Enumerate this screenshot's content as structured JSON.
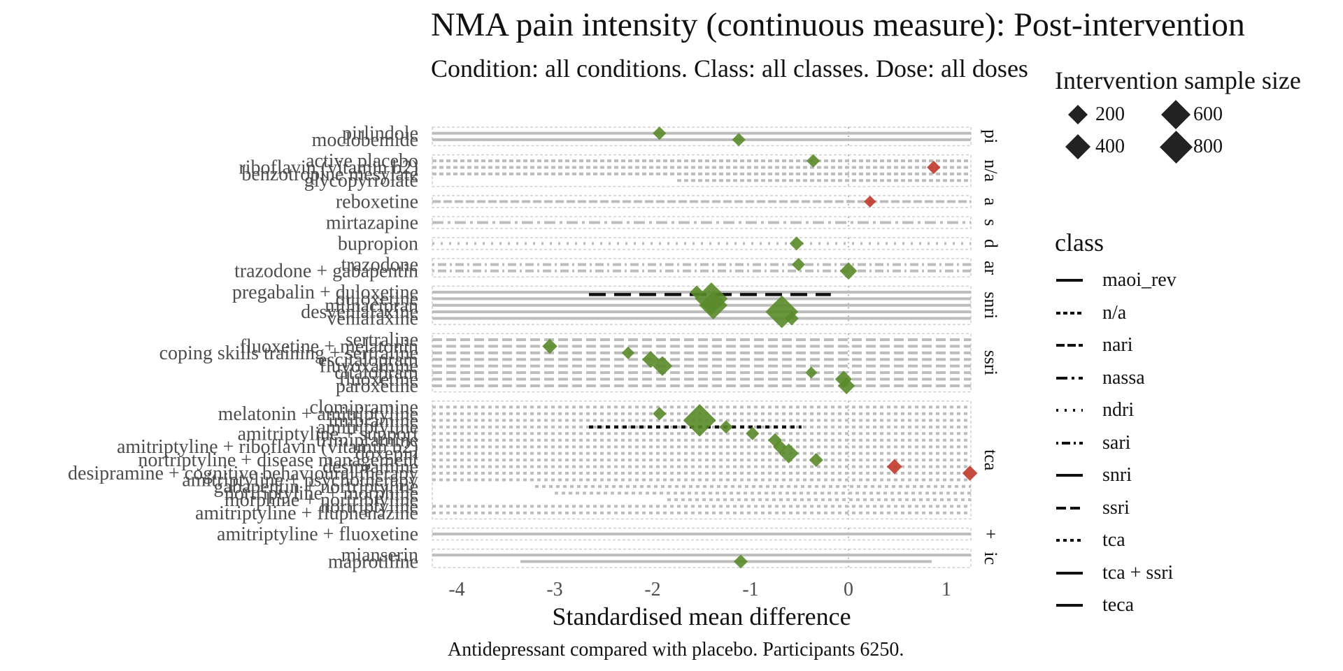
{
  "title": "NMA pain intensity (continuous measure): Post-intervention",
  "subtitle": "Condition: all conditions. Class: all classes. Dose: all doses",
  "caption": "Antidepressant compared with placebo. Participants 6250.",
  "size_legend": {
    "title": "Intervention sample size",
    "items": [
      {
        "label": "200",
        "size": 200
      },
      {
        "label": "600",
        "size": 600
      },
      {
        "label": "400",
        "size": 400
      },
      {
        "label": "800",
        "size": 800
      }
    ]
  },
  "class_legend": {
    "title": "class",
    "items": [
      {
        "label": "maoi_rev",
        "dash": "solid"
      },
      {
        "label": "n/a",
        "dash": "6,4"
      },
      {
        "label": "nari",
        "dash": "12,4"
      },
      {
        "label": "nassa",
        "dash": "16,6,4,6"
      },
      {
        "label": "ndri",
        "dash": "3,9"
      },
      {
        "label": "sari",
        "dash": "3,5,12,5"
      },
      {
        "label": "snri",
        "dash": "solid"
      },
      {
        "label": "ssri",
        "dash": "14,6"
      },
      {
        "label": "tca",
        "dash": "5,5"
      },
      {
        "label": "tca + ssri",
        "dash": "solid"
      },
      {
        "label": "teca",
        "dash": "solid"
      }
    ]
  },
  "colors": {
    "favourable": "#5a8a2a",
    "unfavourable": "#c0392b",
    "ci": "#bdbdbd",
    "pooled": "#111111"
  },
  "chart_data": {
    "type": "forest",
    "xlabel": "Standardised mean difference",
    "xlim": [
      -4.25,
      1.25
    ],
    "xticks": [
      "-4",
      "-3",
      "-2",
      "-1",
      "0",
      "1"
    ],
    "xtick_values": [
      -4,
      -3,
      -2,
      -1,
      0,
      1
    ],
    "classes": [
      {
        "label": "pi",
        "dash": "solid",
        "rows": [
          {
            "name": "pirlindole",
            "smd": -1.93,
            "size": 50,
            "ci": [
              -4.25,
              1.25
            ]
          },
          {
            "name": "moclobemide",
            "smd": -1.12,
            "size": 50,
            "ci": [
              -4.25,
              1.25
            ]
          }
        ]
      },
      {
        "label": "n/a",
        "dash": "6,4",
        "rows": [
          {
            "name": "active placebo",
            "smd": -0.36,
            "size": 50,
            "ci": [
              -4.25,
              1.25
            ]
          },
          {
            "name": "riboflavin (vitamin b2)",
            "smd": 0.87,
            "size": 50,
            "ci": [
              -4.25,
              1.25
            ]
          },
          {
            "name": "benzotropine mesylate",
            "smd": null,
            "size": 0,
            "ci": [
              -4.25,
              1.25
            ]
          },
          {
            "name": "glycopyrrolate",
            "smd": null,
            "size": 0,
            "ci": [
              -1.75,
              1.25
            ]
          }
        ]
      },
      {
        "label": "a",
        "dash": "12,4",
        "rows": [
          {
            "name": "reboxetine",
            "smd": 0.22,
            "size": 30,
            "ci": [
              -4.25,
              1.25
            ]
          }
        ]
      },
      {
        "label": "s",
        "dash": "16,6,4,6",
        "rows": [
          {
            "name": "mirtazapine",
            "smd": null,
            "size": 0,
            "ci": [
              -4.25,
              1.25
            ]
          }
        ]
      },
      {
        "label": "d",
        "dash": "3,9",
        "rows": [
          {
            "name": "bupropion",
            "smd": -0.53,
            "size": 60,
            "ci": [
              -4.25,
              1.25
            ]
          }
        ]
      },
      {
        "label": "ar",
        "dash": "3,5,12,5",
        "rows": [
          {
            "name": "trazodone",
            "smd": -0.51,
            "size": 50,
            "ci": [
              -4.25,
              1.25
            ]
          },
          {
            "name": "trazodone + gabapentin",
            "smd": 0.0,
            "size": 130,
            "ci": [
              -4.25,
              1.25
            ]
          }
        ]
      },
      {
        "label": "snri",
        "dash": "solid",
        "pooled": {
          "ci": [
            -2.65,
            -0.18
          ],
          "dash": "24,12"
        },
        "rows": [
          {
            "name": "pregabalin + duloxetine",
            "smd": -1.55,
            "size": 50,
            "ci": [
              -4.25,
              1.25
            ]
          },
          {
            "name": "duloxetine",
            "smd": -1.4,
            "size": 800,
            "ci": [
              -4.25,
              1.25
            ]
          },
          {
            "name": "milnacipran",
            "smd": -1.38,
            "size": 550,
            "ci": [
              -4.25,
              1.25
            ]
          },
          {
            "name": "desvenlafaxine",
            "smd": -0.68,
            "size": 800,
            "ci": [
              -4.25,
              1.25
            ]
          },
          {
            "name": "venlafaxine",
            "smd": -0.58,
            "size": 60,
            "ci": [
              -4.25,
              1.25
            ]
          }
        ]
      },
      {
        "label": "ssri",
        "dash": "14,6",
        "rows": [
          {
            "name": "sertraline",
            "smd": null,
            "size": 0,
            "ci": [
              -4.25,
              1.25
            ]
          },
          {
            "name": "fluoxetine + melatonin",
            "smd": -3.05,
            "size": 80,
            "ci": [
              -4.25,
              1.25
            ]
          },
          {
            "name": "coping skills training + sertraline",
            "smd": -2.25,
            "size": 40,
            "ci": [
              -4.25,
              1.25
            ]
          },
          {
            "name": "escitalopram",
            "smd": -2.02,
            "size": 120,
            "ci": [
              -4.25,
              1.25
            ]
          },
          {
            "name": "fluvoxamine",
            "smd": -1.9,
            "size": 200,
            "ci": [
              -4.25,
              1.25
            ]
          },
          {
            "name": "citalopram",
            "smd": -0.38,
            "size": 30,
            "ci": [
              -4.25,
              1.25
            ]
          },
          {
            "name": "fluoxetine",
            "smd": -0.05,
            "size": 120,
            "ci": [
              -4.25,
              1.25
            ]
          },
          {
            "name": "paroxetine",
            "smd": -0.02,
            "size": 120,
            "ci": [
              -4.25,
              1.25
            ]
          }
        ]
      },
      {
        "label": "tca",
        "dash": "5,5",
        "pooled": {
          "ci": [
            -2.65,
            -0.48
          ],
          "dash": "6,6"
        },
        "rows": [
          {
            "name": "clomipramine",
            "smd": null,
            "size": 0,
            "ci": [
              -4.25,
              1.25
            ]
          },
          {
            "name": "melatonin + amitriptyline",
            "smd": -1.93,
            "size": 50,
            "ci": [
              -4.25,
              1.25
            ]
          },
          {
            "name": "imipramine",
            "smd": -1.52,
            "size": 800,
            "ci": [
              -4.25,
              1.25
            ]
          },
          {
            "name": "amitriptyline",
            "smd": -1.25,
            "size": 50,
            "ci": [
              -4.25,
              1.25
            ]
          },
          {
            "name": "amitriptyline + support",
            "smd": -0.98,
            "size": 50,
            "ci": [
              -4.25,
              1.25
            ]
          },
          {
            "name": "trimipramine",
            "smd": -0.75,
            "size": 60,
            "ci": [
              -4.25,
              1.25
            ]
          },
          {
            "name": "amitriptyline + riboflavin (vitamin b2)",
            "smd": -0.7,
            "size": 60,
            "ci": [
              -4.25,
              1.25
            ]
          },
          {
            "name": "doxepin",
            "smd": -0.61,
            "size": 200,
            "ci": [
              -4.25,
              1.25
            ]
          },
          {
            "name": "nortriptyline + disease management",
            "smd": -0.33,
            "size": 60,
            "ci": [
              -4.25,
              1.25
            ]
          },
          {
            "name": "desipramine",
            "smd": 0.47,
            "size": 80,
            "ci": [
              -4.25,
              1.25
            ]
          },
          {
            "name": "desipramine + cognitive behavioural therapy",
            "smd": 1.24,
            "size": 80,
            "ci": [
              -4.25,
              1.25
            ]
          },
          {
            "name": "amitriptyline + psychotherapy",
            "smd": null,
            "size": 0,
            "ci": [
              -4.25,
              1.25
            ]
          },
          {
            "name": "gabapentin + nortriptyline",
            "smd": null,
            "size": 0,
            "ci": [
              -3.2,
              1.25
            ]
          },
          {
            "name": "nortriptyline + morphine",
            "smd": null,
            "size": 0,
            "ci": [
              -3.0,
              1.25
            ]
          },
          {
            "name": "morphine + nortriptyline",
            "smd": null,
            "size": 0,
            "ci": [
              -1.85,
              1.25
            ]
          },
          {
            "name": "nortriptyline",
            "smd": null,
            "size": 0,
            "ci": [
              -4.25,
              1.25
            ]
          },
          {
            "name": "amitriptyline + fluphenazine",
            "smd": null,
            "size": 0,
            "ci": [
              -4.25,
              1.25
            ]
          }
        ]
      },
      {
        "label": "+",
        "dash": "solid",
        "rows": [
          {
            "name": "amitriptyline + fluoxetine",
            "smd": null,
            "size": 0,
            "ci": [
              -4.25,
              1.25
            ]
          }
        ]
      },
      {
        "label": "ic",
        "dash": "solid",
        "rows": [
          {
            "name": "mianserin",
            "smd": null,
            "size": 0,
            "ci": [
              -4.25,
              1.25
            ]
          },
          {
            "name": "maprotiline",
            "smd": -1.1,
            "size": 60,
            "ci": [
              -3.35,
              0.85
            ]
          }
        ]
      }
    ]
  }
}
